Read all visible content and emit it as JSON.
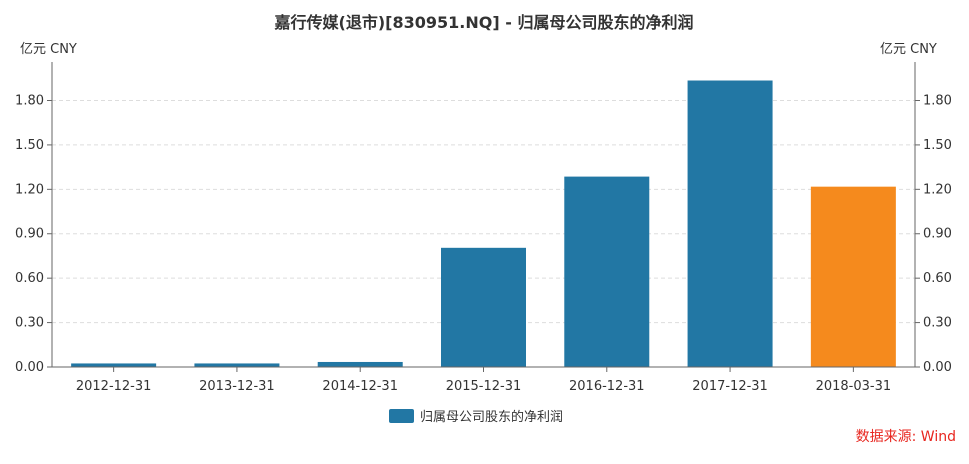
{
  "chart_data": {
    "type": "bar",
    "title": "嘉行传媒(退市)[830951.NQ] - 归属母公司股东的净利润",
    "ylabel_left": "亿元  CNY",
    "ylabel_right": "亿元  CNY",
    "categories": [
      "2012-12-31",
      "2013-12-31",
      "2014-12-31",
      "2015-12-31",
      "2016-12-31",
      "2017-12-31",
      "2018-03-31"
    ],
    "values": [
      0.024,
      0.024,
      0.034,
      0.805,
      1.286,
      1.935,
      1.218
    ],
    "bar_colors": [
      "#2277a4",
      "#2277a4",
      "#2277a4",
      "#2277a4",
      "#2277a4",
      "#2277a4",
      "#f58a1d"
    ],
    "yticks": [
      "0.00",
      "0.30",
      "0.60",
      "0.90",
      "1.20",
      "1.50",
      "1.80"
    ],
    "ylim": [
      0,
      2.06
    ],
    "grid": true,
    "legend": {
      "label": "归属母公司股东的净利润",
      "color": "#2277a4",
      "placement": "bottom-center"
    },
    "source": "数据来源: Wind"
  }
}
